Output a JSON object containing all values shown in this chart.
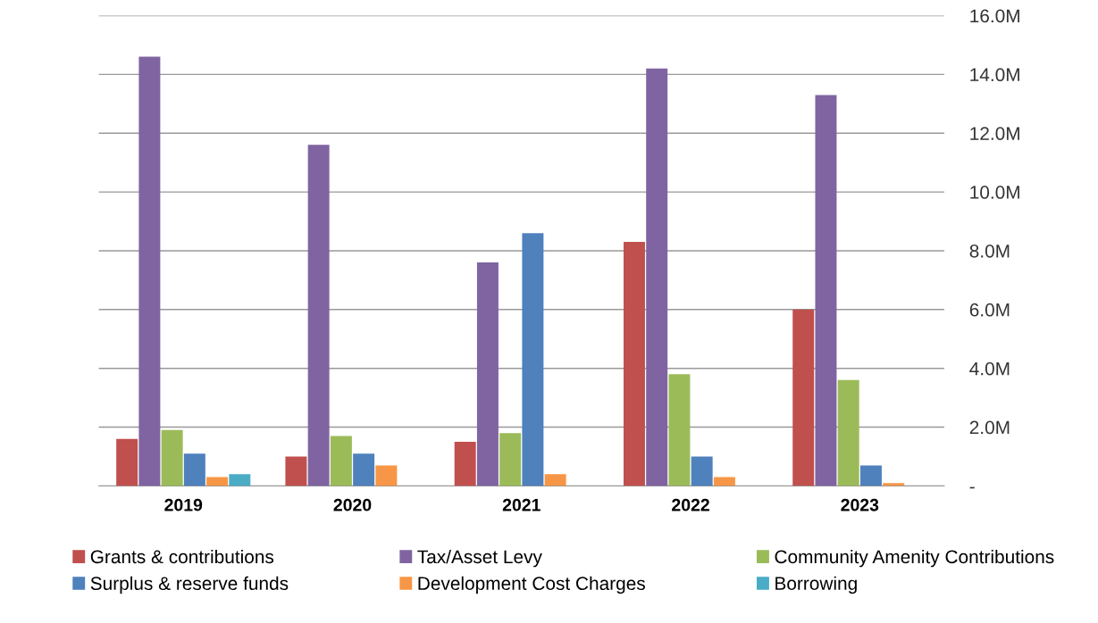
{
  "chart_data": {
    "type": "bar",
    "categories": [
      "2019",
      "2020",
      "2021",
      "2022",
      "2023"
    ],
    "series": [
      {
        "name": "Grants & contributions",
        "color": "#c0504d",
        "values": [
          1.6,
          1.0,
          1.5,
          8.3,
          6.0
        ]
      },
      {
        "name": "Tax/Asset Levy",
        "color": "#8064a2",
        "values": [
          14.6,
          11.6,
          7.6,
          14.2,
          13.3
        ]
      },
      {
        "name": "Community Amenity Contributions",
        "color": "#9bbb59",
        "values": [
          1.9,
          1.7,
          1.8,
          3.8,
          3.6
        ]
      },
      {
        "name": "Surplus & reserve funds",
        "color": "#4f81bd",
        "values": [
          1.1,
          1.1,
          8.6,
          1.0,
          0.7
        ]
      },
      {
        "name": "Development Cost Charges",
        "color": "#f79646",
        "values": [
          0.3,
          0.7,
          0.4,
          0.3,
          0.1
        ]
      },
      {
        "name": "Borrowing",
        "color": "#4bacc6",
        "values": [
          0.4,
          null,
          null,
          null,
          null
        ]
      }
    ],
    "ylim": [
      0,
      16
    ],
    "yticks": [
      {
        "value": 0,
        "label": "-"
      },
      {
        "value": 2,
        "label": "2.0M"
      },
      {
        "value": 4,
        "label": "4.0M"
      },
      {
        "value": 6,
        "label": "6.0M"
      },
      {
        "value": 8,
        "label": "8.0M"
      },
      {
        "value": 10,
        "label": "10.0M"
      },
      {
        "value": 12,
        "label": "12.0M"
      },
      {
        "value": 14,
        "label": "14.0M"
      },
      {
        "value": 16,
        "label": "16.0M"
      }
    ],
    "grid": "y",
    "legend": "bottom"
  }
}
